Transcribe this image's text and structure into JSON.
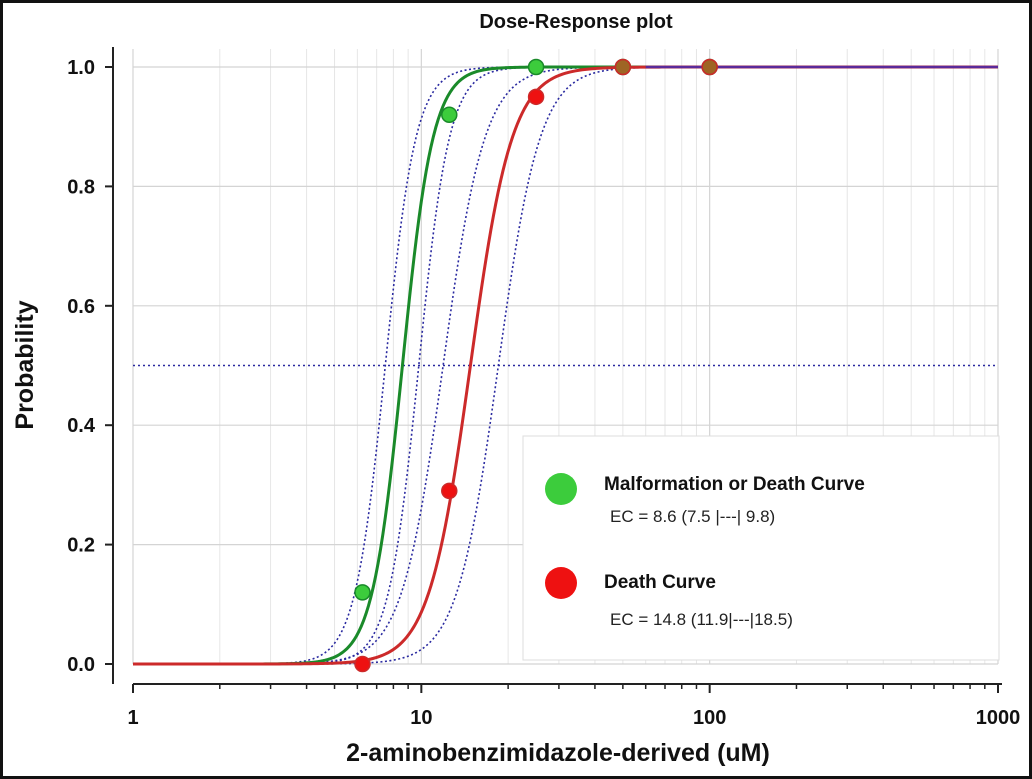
{
  "chart_data": {
    "type": "line",
    "title": "Dose-Response plot",
    "xlabel": "2-aminobenzimidazole-derived (uM)",
    "ylabel": "Probability",
    "xscale": "log",
    "xlim": [
      1,
      1000
    ],
    "ylim": [
      0,
      1
    ],
    "xticks": [
      1,
      10,
      100,
      1000
    ],
    "xtick_labels": [
      "1",
      "10",
      "100",
      "1000"
    ],
    "yticks": [
      0,
      0.2,
      0.4,
      0.6,
      0.8,
      1.0
    ],
    "ytick_labels": [
      "0.0",
      "0.2",
      "0.4",
      "0.6",
      "0.8",
      "1.0"
    ],
    "reference_line": {
      "y": 0.5,
      "style": "dotted",
      "color": "#2a2aa0"
    },
    "legend_position": "bottom-right",
    "series": [
      {
        "name": "Malformation or Death Curve",
        "color": "#1a8a2a",
        "marker_color": "#3ccc3c",
        "ec": 8.6,
        "ec_low": 7.5,
        "ec_high": 9.8,
        "ec_label": "EC = 8.6 (7.5 |---| 9.8)",
        "slope": 8.2,
        "points": [
          {
            "x": 6.25,
            "y": 0.12
          },
          {
            "x": 12.5,
            "y": 0.92
          },
          {
            "x": 25,
            "y": 1.0
          },
          {
            "x": 50,
            "y": 1.0
          },
          {
            "x": 100,
            "y": 1.0
          }
        ]
      },
      {
        "name": "Death Curve",
        "color": "#cc2a2a",
        "marker_color": "#ee1111",
        "ec": 14.8,
        "ec_low": 11.9,
        "ec_high": 18.5,
        "ec_label": "EC = 14.8 (11.9|---|18.5)",
        "slope": 6.0,
        "points": [
          {
            "x": 6.25,
            "y": 0.0
          },
          {
            "x": 12.5,
            "y": 0.29
          },
          {
            "x": 25,
            "y": 0.95
          },
          {
            "x": 50,
            "y": 1.0
          },
          {
            "x": 100,
            "y": 1.0
          }
        ]
      }
    ]
  }
}
